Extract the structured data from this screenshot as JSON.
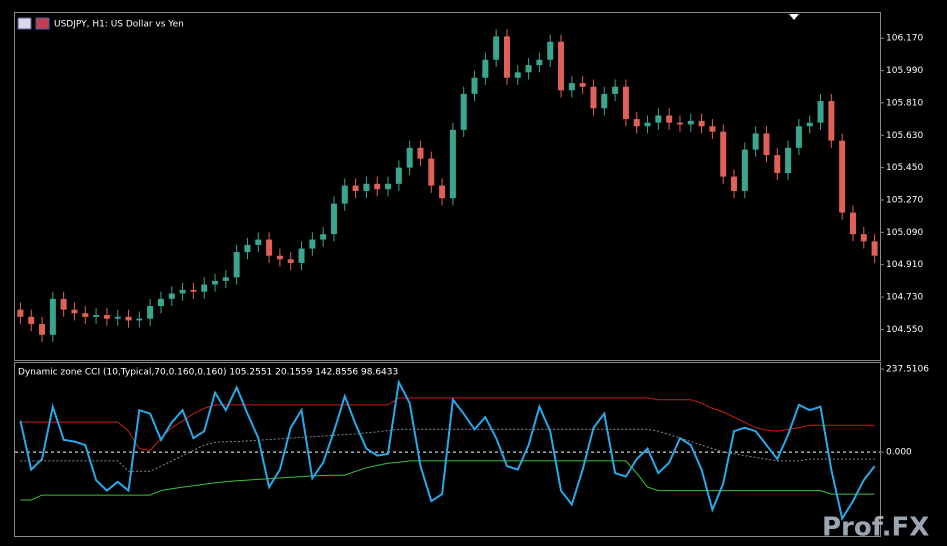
{
  "chart_data": [
    {
      "type": "candlestick",
      "title": "USDJPY, H1:  US Dollar vs Yen",
      "up_color": "#3aa68f",
      "down_color": "#e0605a",
      "ylim": [
        104.38,
        106.31
      ],
      "yticks": [
        {
          "value": 104.55,
          "label": "104.550"
        },
        {
          "value": 104.73,
          "label": "104.730"
        },
        {
          "value": 104.91,
          "label": "104.910"
        },
        {
          "value": 105.09,
          "label": "105.090"
        },
        {
          "value": 105.27,
          "label": "105.270"
        },
        {
          "value": 105.45,
          "label": "105.450"
        },
        {
          "value": 105.63,
          "label": "105.630"
        },
        {
          "value": 105.81,
          "label": "105.810"
        },
        {
          "value": 105.99,
          "label": "105.990"
        },
        {
          "value": 106.17,
          "label": "106.170"
        }
      ],
      "open": [
        104.66,
        104.62,
        104.58,
        104.52,
        104.72,
        104.66,
        104.64,
        104.62,
        104.63,
        104.61,
        104.62,
        104.6,
        104.61,
        104.68,
        104.72,
        104.75,
        104.77,
        104.76,
        104.8,
        104.82,
        104.84,
        104.98,
        105.02,
        105.05,
        104.96,
        104.94,
        104.92,
        105.0,
        105.05,
        105.08,
        105.25,
        105.35,
        105.32,
        105.36,
        105.33,
        105.36,
        105.45,
        105.56,
        105.5,
        105.35,
        105.28,
        105.66,
        105.86,
        105.95,
        106.05,
        106.18,
        105.95,
        105.98,
        106.02,
        106.05,
        106.15,
        105.88,
        105.92,
        105.9,
        105.78,
        105.86,
        105.9,
        105.72,
        105.68,
        105.7,
        105.74,
        105.7,
        105.69,
        105.71,
        105.68,
        105.65,
        105.4,
        105.32,
        105.55,
        105.64,
        105.52,
        105.42,
        105.56,
        105.68,
        105.7,
        105.82,
        105.6,
        105.2,
        105.08,
        105.04
      ],
      "high": [
        104.7,
        104.66,
        104.62,
        104.76,
        104.76,
        104.7,
        104.68,
        104.67,
        104.67,
        104.66,
        104.66,
        104.65,
        104.72,
        104.76,
        104.79,
        104.81,
        104.81,
        104.84,
        104.86,
        104.88,
        105.02,
        105.06,
        105.09,
        105.09,
        105.0,
        104.98,
        105.04,
        105.09,
        105.12,
        105.29,
        105.39,
        105.39,
        105.4,
        105.4,
        105.4,
        105.49,
        105.6,
        105.6,
        105.54,
        105.39,
        105.7,
        105.9,
        105.99,
        106.09,
        106.22,
        106.22,
        106.02,
        106.06,
        106.09,
        106.19,
        106.19,
        105.96,
        105.96,
        105.94,
        105.9,
        105.94,
        105.94,
        105.76,
        105.74,
        105.78,
        105.78,
        105.74,
        105.75,
        105.75,
        105.72,
        105.69,
        105.44,
        105.59,
        105.68,
        105.68,
        105.56,
        105.6,
        105.72,
        105.74,
        105.86,
        105.86,
        105.64,
        105.24,
        105.12,
        105.08
      ],
      "low": [
        104.58,
        104.54,
        104.48,
        104.48,
        104.62,
        104.6,
        104.58,
        104.58,
        104.57,
        104.57,
        104.56,
        104.56,
        104.57,
        104.64,
        104.68,
        104.71,
        104.72,
        104.72,
        104.76,
        104.78,
        104.8,
        104.94,
        104.98,
        104.92,
        104.9,
        104.88,
        104.88,
        104.96,
        105.01,
        105.04,
        105.21,
        105.28,
        105.28,
        105.29,
        105.29,
        105.32,
        105.41,
        105.46,
        105.31,
        105.24,
        105.24,
        105.62,
        105.82,
        105.91,
        106.01,
        105.91,
        105.91,
        105.94,
        105.98,
        106.01,
        105.84,
        105.84,
        105.86,
        105.74,
        105.74,
        105.82,
        105.68,
        105.64,
        105.64,
        105.66,
        105.66,
        105.65,
        105.65,
        105.64,
        105.61,
        105.36,
        105.28,
        105.28,
        105.51,
        105.48,
        105.38,
        105.38,
        105.52,
        105.64,
        105.66,
        105.56,
        105.16,
        105.04,
        105.0,
        104.92
      ],
      "close": [
        104.62,
        104.58,
        104.52,
        104.72,
        104.66,
        104.64,
        104.62,
        104.63,
        104.61,
        104.62,
        104.6,
        104.61,
        104.68,
        104.72,
        104.75,
        104.77,
        104.76,
        104.8,
        104.82,
        104.84,
        104.98,
        105.02,
        105.05,
        104.96,
        104.94,
        104.92,
        105.0,
        105.05,
        105.08,
        105.25,
        105.35,
        105.32,
        105.36,
        105.33,
        105.36,
        105.45,
        105.56,
        105.5,
        105.35,
        105.28,
        105.66,
        105.86,
        105.95,
        106.05,
        106.18,
        105.95,
        105.98,
        106.02,
        106.05,
        106.15,
        105.88,
        105.92,
        105.9,
        105.78,
        105.86,
        105.9,
        105.72,
        105.68,
        105.7,
        105.74,
        105.7,
        105.69,
        105.71,
        105.68,
        105.65,
        105.4,
        105.32,
        105.55,
        105.64,
        105.52,
        105.42,
        105.56,
        105.68,
        105.7,
        105.82,
        105.6,
        105.2,
        105.08,
        105.04,
        104.96
      ]
    },
    {
      "type": "line",
      "title": "Dynamic zone CCI (10,Typical,70,0.160,0.160) 105.2551 20.1559 142.8556 98.6433",
      "ylim": [
        -240,
        255
      ],
      "yticks": [
        {
          "value": 237.5106,
          "label": "237.5106"
        },
        {
          "value": 0,
          "label": "0.000"
        }
      ],
      "levels": [
        0
      ],
      "series": [
        {
          "color": "#c8201c",
          "width": 1,
          "values": [
            86,
            86,
            86,
            86,
            86,
            86,
            86,
            86,
            86,
            86,
            60,
            10,
            5,
            40,
            70,
            90,
            110,
            125,
            135,
            135,
            135,
            135,
            135,
            135,
            135,
            135,
            135,
            135,
            135,
            135,
            135,
            135,
            135,
            135,
            135,
            155,
            155,
            155,
            155,
            155,
            155,
            155,
            155,
            155,
            155,
            155,
            155,
            155,
            155,
            155,
            155,
            155,
            155,
            155,
            155,
            155,
            155,
            155,
            155,
            150,
            150,
            150,
            150,
            140,
            125,
            115,
            100,
            85,
            70,
            63,
            60,
            65,
            70,
            77,
            77,
            77,
            77,
            77,
            77,
            77
          ]
        },
        {
          "color": "#8a8a8a",
          "width": 1,
          "dash": true,
          "values": [
            -25,
            -25,
            -25,
            -25,
            -25,
            -25,
            -25,
            -25,
            -25,
            -25,
            -55,
            -55,
            -55,
            -40,
            -25,
            -10,
            5,
            20,
            28,
            30,
            30,
            32,
            34,
            36,
            38,
            40,
            42,
            44,
            46,
            48,
            50,
            52,
            55,
            58,
            62,
            65,
            65,
            65,
            65,
            65,
            65,
            65,
            65,
            65,
            65,
            65,
            65,
            65,
            65,
            65,
            65,
            65,
            65,
            65,
            65,
            65,
            65,
            65,
            65,
            60,
            50,
            40,
            30,
            20,
            10,
            0,
            -5,
            -10,
            -15,
            -20,
            -25,
            -25,
            -25,
            -20,
            -20,
            -20,
            -20,
            -20,
            -20,
            -20
          ]
        },
        {
          "color": "#3cc23c",
          "width": 1,
          "values": [
            -137,
            -137,
            -123,
            -123,
            -123,
            -123,
            -123,
            -123,
            -123,
            -123,
            -123,
            -123,
            -123,
            -110,
            -105,
            -100,
            -96,
            -92,
            -88,
            -85,
            -82,
            -80,
            -78,
            -76,
            -74,
            -72,
            -70,
            -68,
            -67,
            -66,
            -66,
            -55,
            -45,
            -38,
            -32,
            -29,
            -25,
            -25,
            -25,
            -25,
            -25,
            -25,
            -25,
            -25,
            -25,
            -25,
            -25,
            -25,
            -25,
            -25,
            -25,
            -25,
            -25,
            -25,
            -25,
            -25,
            -25,
            -60,
            -100,
            -110,
            -110,
            -110,
            -110,
            -110,
            -110,
            -110,
            -110,
            -110,
            -110,
            -110,
            -110,
            -110,
            -110,
            -110,
            -110,
            -120,
            -120,
            -120,
            -120,
            -120
          ]
        },
        {
          "color": "#29a8e8",
          "width": 2,
          "values": [
            90,
            -50,
            -20,
            130,
            35,
            30,
            20,
            -80,
            -110,
            -85,
            -110,
            120,
            110,
            35,
            85,
            120,
            40,
            60,
            170,
            120,
            185,
            110,
            40,
            -100,
            -50,
            70,
            120,
            -75,
            -30,
            60,
            160,
            80,
            10,
            -10,
            -5,
            200,
            140,
            -40,
            -140,
            -120,
            150,
            110,
            65,
            100,
            40,
            -40,
            -50,
            20,
            130,
            60,
            -110,
            -150,
            -50,
            70,
            110,
            -60,
            -70,
            -20,
            10,
            -60,
            -30,
            40,
            20,
            -50,
            -165,
            -90,
            60,
            70,
            60,
            20,
            -20,
            50,
            135,
            120,
            130,
            -50,
            -190,
            -140,
            -80,
            -40
          ]
        }
      ]
    }
  ],
  "watermark": "Prof.FX"
}
